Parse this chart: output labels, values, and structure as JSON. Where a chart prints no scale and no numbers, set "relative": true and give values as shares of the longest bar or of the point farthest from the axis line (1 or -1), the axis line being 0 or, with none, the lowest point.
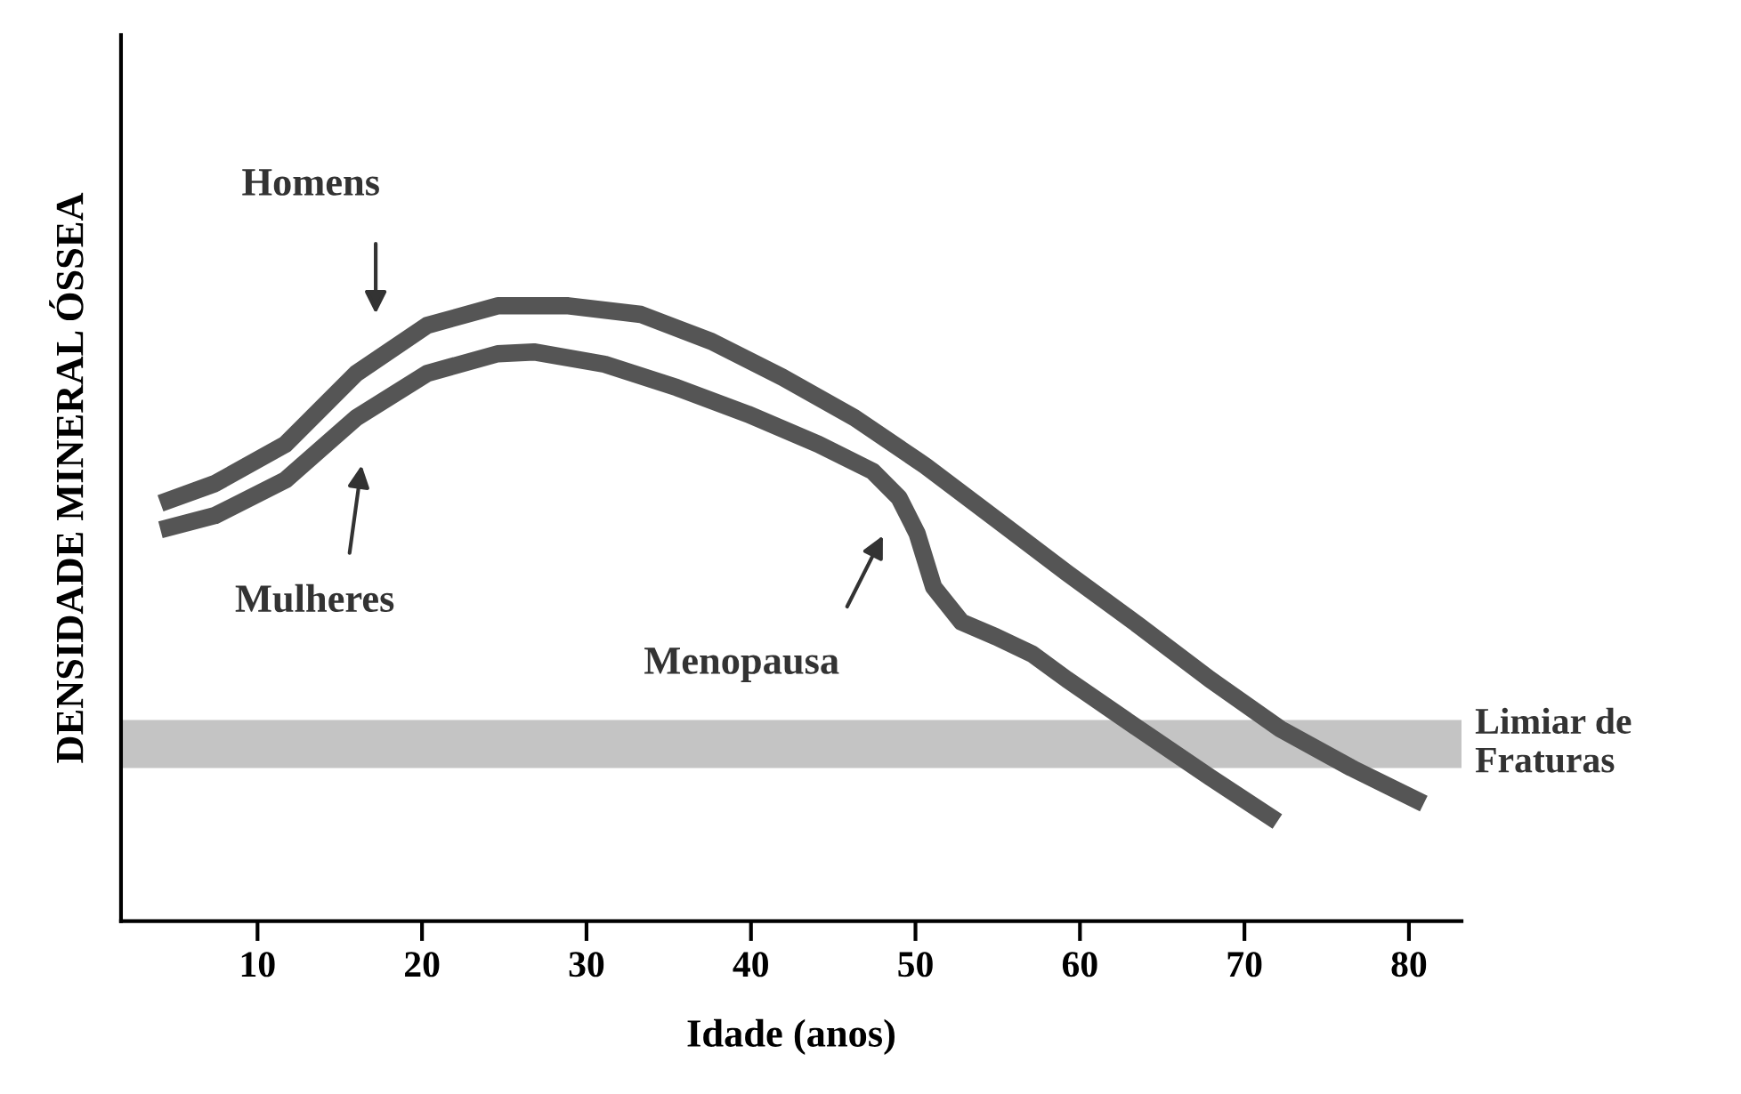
{
  "chart_data": {
    "type": "line",
    "relative": true,
    "xlabel": "Idade (anos)",
    "ylabel": "DENSIDADE MINERAL ÓSSEA",
    "xlim": [
      1.7,
      83.2
    ],
    "xticks": [
      10,
      20,
      30,
      40,
      50,
      60,
      70,
      80
    ],
    "grid": false,
    "legend": false,
    "marker": "none",
    "line_style": "solid",
    "series": [
      {
        "color": "#555555",
        "x": [
          4.1,
          7.4,
          11.7,
          16.0,
          20.3,
          24.6,
          28.9,
          33.3,
          37.6,
          41.9,
          46.3,
          50.6,
          54.9,
          59.2,
          63.6,
          67.9,
          72.2,
          76.5,
          80.9
        ],
        "values": [
          0.679,
          0.711,
          0.775,
          0.89,
          0.968,
          1.0,
          1.0,
          0.986,
          0.942,
          0.884,
          0.818,
          0.74,
          0.653,
          0.566,
          0.48,
          0.393,
          0.312,
          0.249,
          0.191
        ]
      },
      {
        "color": "#555555",
        "x": [
          4.1,
          7.4,
          11.7,
          16.0,
          20.3,
          24.6,
          26.8,
          31.1,
          35.5,
          39.8,
          44.1,
          47.4,
          49.0,
          50.1,
          51.1,
          52.8,
          54.9,
          57.1,
          59.2,
          63.6,
          67.9,
          72.0
        ],
        "values": [
          0.636,
          0.659,
          0.717,
          0.818,
          0.89,
          0.922,
          0.925,
          0.905,
          0.867,
          0.824,
          0.775,
          0.731,
          0.688,
          0.63,
          0.543,
          0.486,
          0.462,
          0.434,
          0.393,
          0.312,
          0.234,
          0.162
        ]
      }
    ],
    "bands": [
      {
        "axis": "y",
        "from": 0.249,
        "to": 0.327,
        "label": "Limiar de\nFraturas",
        "color": "#c4c4c4"
      }
    ],
    "annotations": [
      "Homens",
      "Mulheres",
      "Menopausa"
    ]
  }
}
